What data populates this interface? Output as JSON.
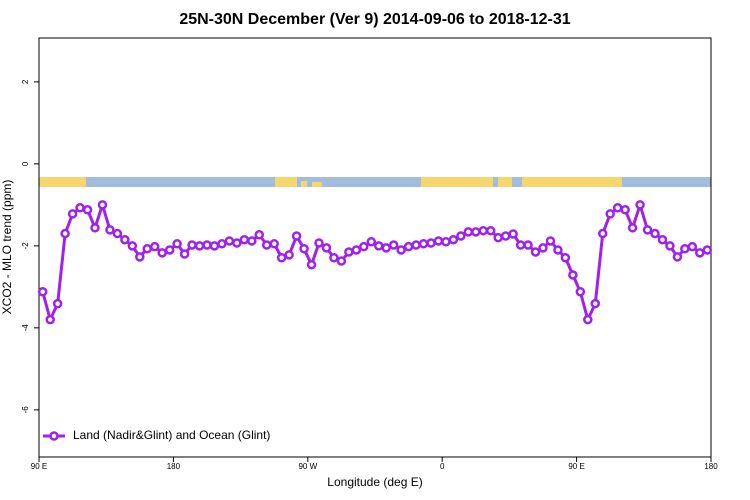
{
  "chart_data": {
    "type": "line",
    "title": "25N-30N December (Ver 9)   2014-09-06 to 2018-12-31",
    "x_label": "Longitude (deg E)",
    "y_label": "XCO2 - MLO trend (ppm)",
    "x": [
      92.5,
      97.5,
      102.5,
      107.5,
      112.5,
      117.5,
      122.5,
      127.5,
      132.5,
      137.5,
      142.5,
      147.5,
      152.5,
      157.5,
      162.5,
      167.5,
      172.5,
      177.5,
      182.5,
      187.5,
      192.5,
      197.5,
      202.5,
      207.5,
      212.5,
      217.5,
      222.5,
      227.5,
      232.5,
      237.5,
      242.5,
      247.5,
      252.5,
      257.5,
      262.5,
      267.5,
      272.5,
      277.5,
      282.5,
      287.5,
      292.5,
      297.5,
      302.5,
      307.5,
      312.5,
      317.5,
      322.5,
      327.5,
      332.5,
      337.5,
      342.5,
      347.5,
      352.5,
      357.5,
      362.5,
      367.5,
      372.5,
      377.5,
      382.5,
      387.5,
      392.5,
      397.5,
      402.5,
      407.5,
      412.5,
      417.5,
      422.5,
      427.5,
      432.5,
      437.5,
      442.5,
      447.5,
      452.5,
      457.5,
      462.5,
      467.5,
      472.5,
      477.5,
      482.5,
      487.5,
      492.5,
      497.5,
      502.5,
      507.5,
      512.5,
      517.5,
      522.5,
      527.5,
      532.5,
      537.5
    ],
    "series": [
      {
        "name": "Land (Nadir&Glint) and Ocean (Glint)",
        "color": "#a020f0",
        "values": [
          -3.12,
          -3.8,
          -3.41,
          -1.7,
          -1.22,
          -1.07,
          -1.12,
          -1.56,
          -1.0,
          -1.61,
          -1.7,
          -1.85,
          -2.0,
          -2.27,
          -2.07,
          -2.02,
          -2.17,
          -2.1,
          -1.95,
          -2.2,
          -1.98,
          -2.0,
          -1.98,
          -2.0,
          -1.95,
          -1.88,
          -1.93,
          -1.85,
          -1.88,
          -1.73,
          -1.98,
          -1.95,
          -2.29,
          -2.22,
          -1.76,
          -2.07,
          -2.46,
          -1.93,
          -2.05,
          -2.29,
          -2.37,
          -2.15,
          -2.1,
          -2.02,
          -1.9,
          -2.0,
          -2.05,
          -1.98,
          -2.1,
          -2.02,
          -1.98,
          -1.95,
          -1.93,
          -1.88,
          -1.9,
          -1.85,
          -1.76,
          -1.66,
          -1.66,
          -1.63,
          -1.63,
          -1.8,
          -1.76,
          -1.71,
          -1.98,
          -1.98,
          -2.15,
          -2.05,
          -1.88,
          -2.1,
          -2.29,
          -2.71,
          -3.12,
          -3.8,
          -3.41,
          -1.7,
          -1.22,
          -1.07,
          -1.12,
          -1.56,
          -1.0,
          -1.61,
          -1.7,
          -1.85,
          -2.0,
          -2.27,
          -2.07,
          -2.02,
          -2.17,
          -2.1
        ]
      }
    ],
    "xlim": [
      90,
      540
    ],
    "xticks": [
      {
        "value": 90,
        "label": "90 E"
      },
      180,
      {
        "value": 270,
        "label": "90 W"
      },
      {
        "value": 360,
        "label": "0"
      },
      {
        "value": 450,
        "label": "90 E"
      },
      {
        "value": 540,
        "label": "180"
      }
    ],
    "ylim": [
      -7.15,
      3.07
    ],
    "yticks": [
      -6,
      -4,
      -2,
      0,
      2
    ],
    "legend": "bottom-left"
  }
}
